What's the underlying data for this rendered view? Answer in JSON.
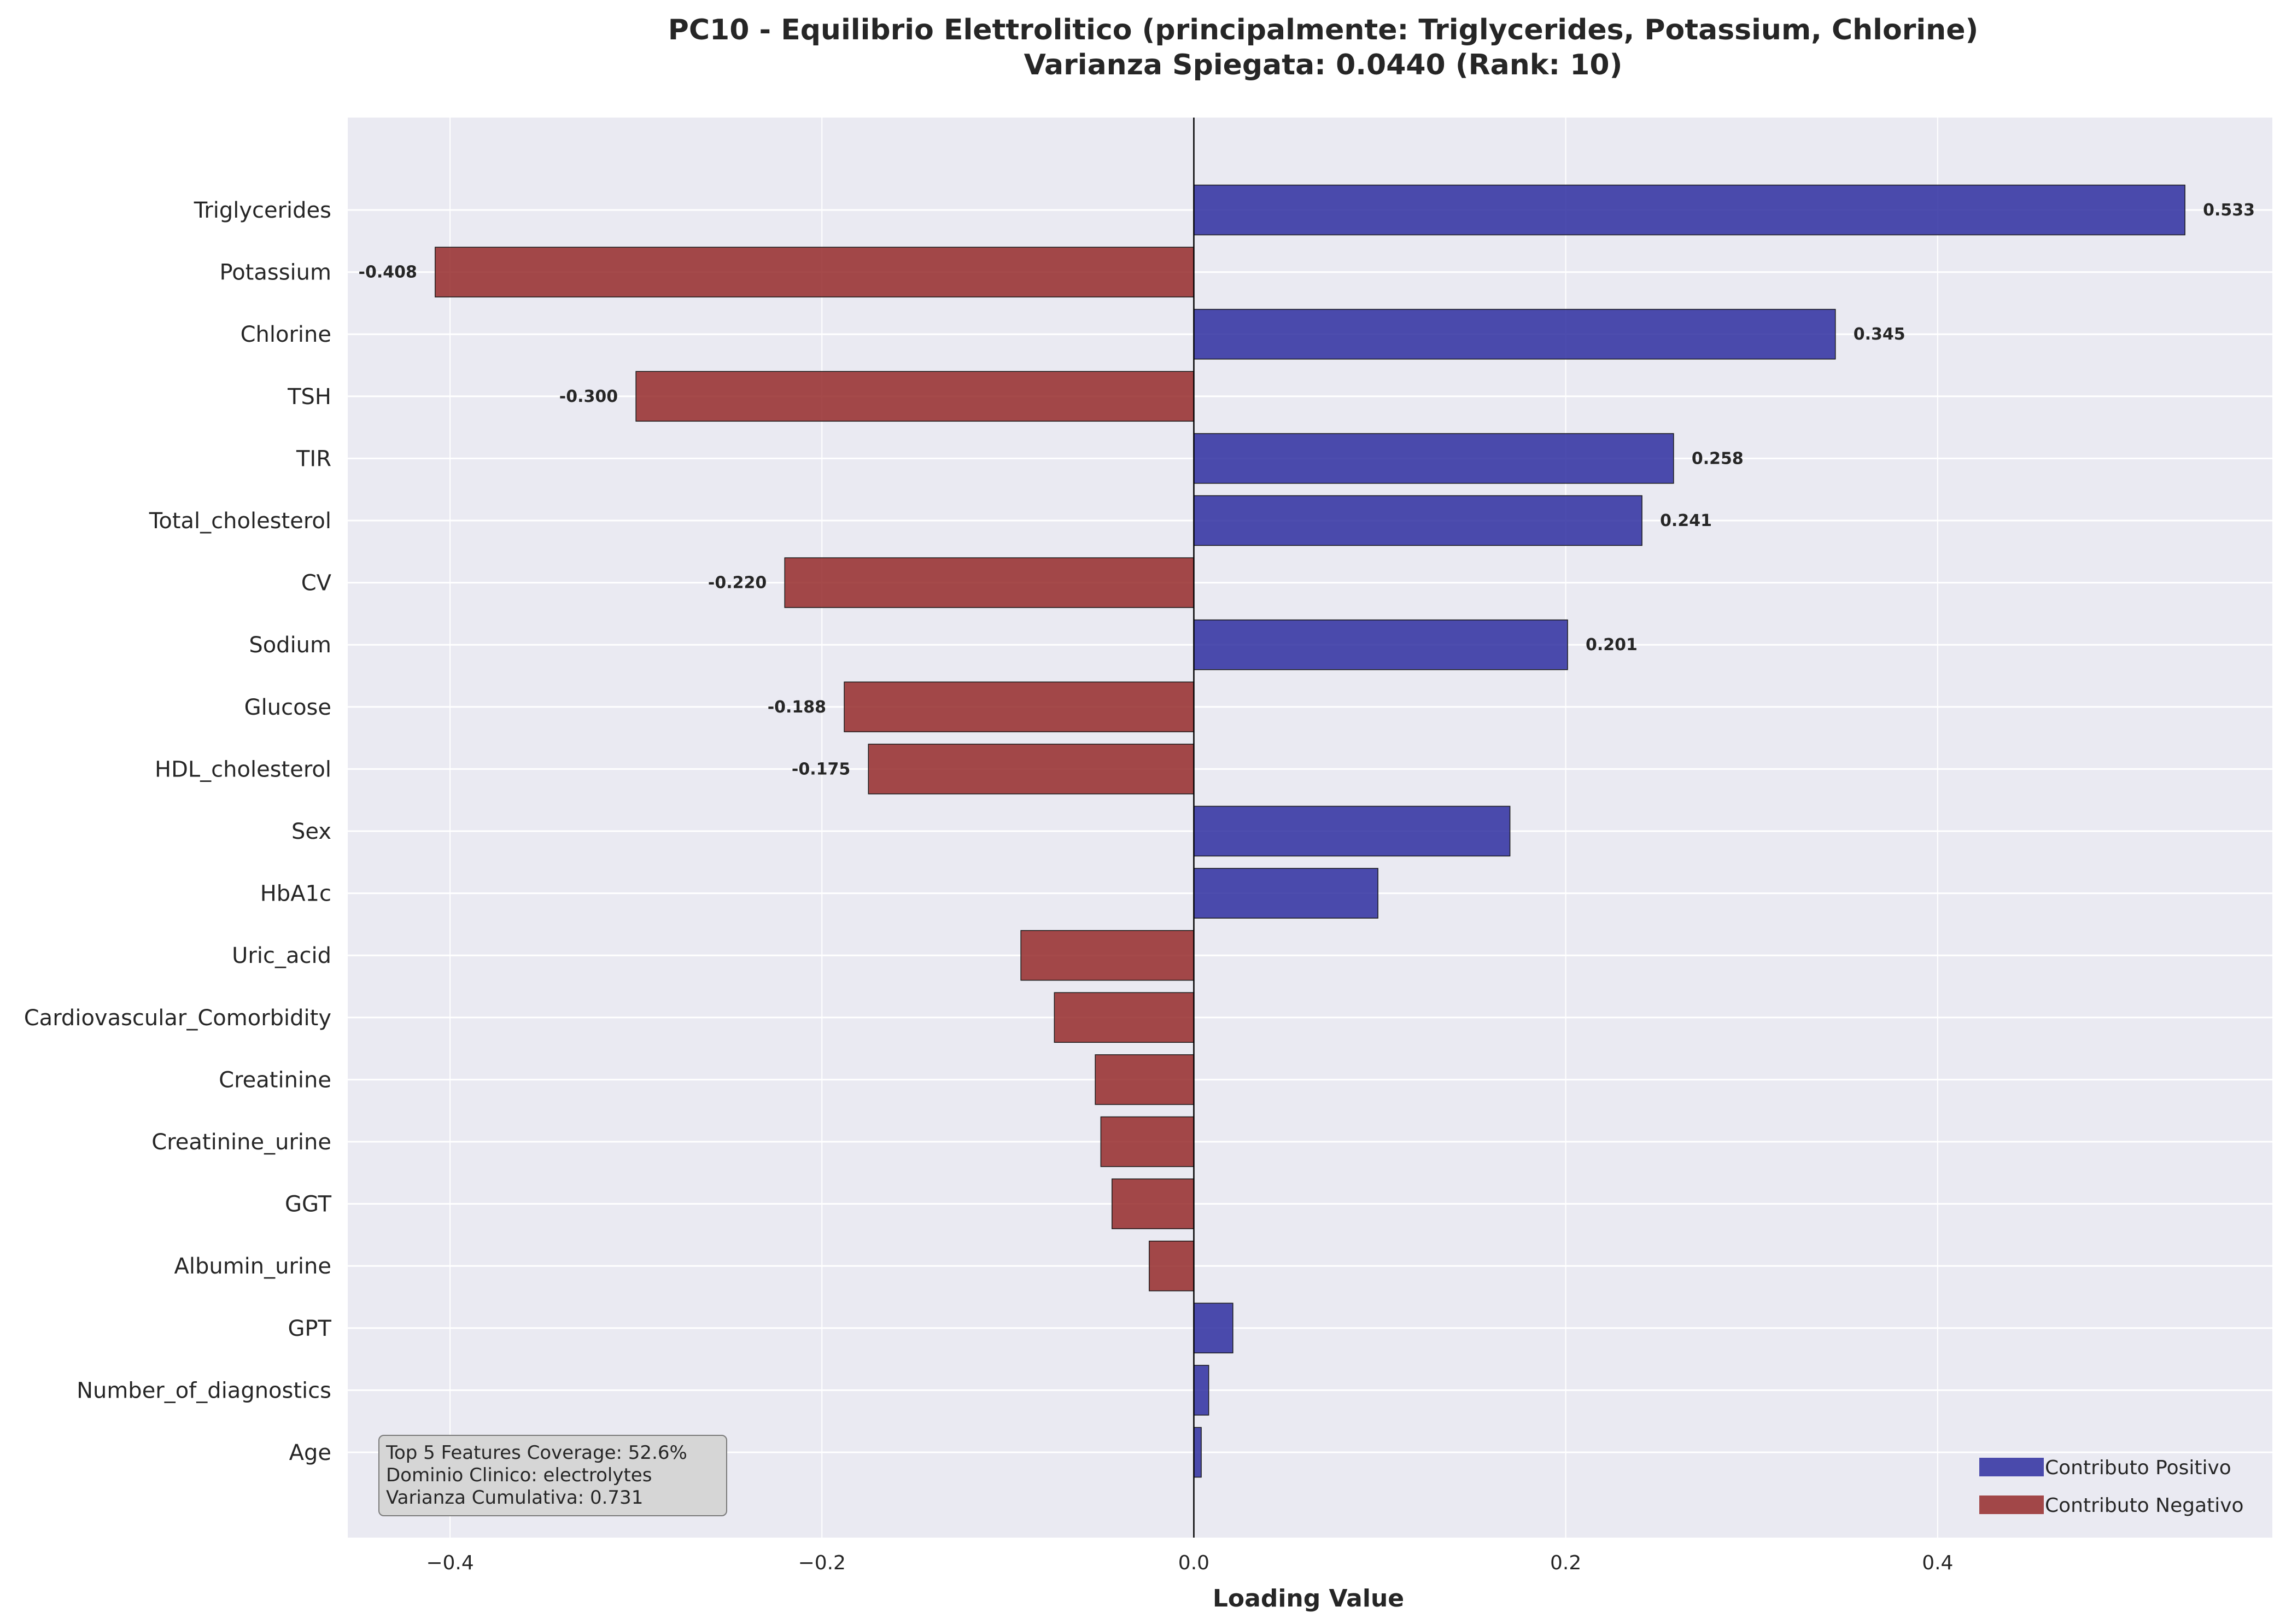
{
  "chart_data": {
    "type": "bar",
    "orientation": "horizontal",
    "title_lines": [
      "PC10 - Equilibrio Elettrolitico (principalmente: Triglycerides, Potassium, Chlorine)",
      "Varianza Spiegata: 0.0440 (Rank: 10)"
    ],
    "xlabel": "Loading Value",
    "ylabel": "",
    "xlim": [
      -0.455,
      0.58
    ],
    "xticks": [
      -0.4,
      -0.2,
      0.0,
      0.2,
      0.4
    ],
    "xtick_labels": [
      "−0.4",
      "−0.2",
      "0.0",
      "0.2",
      "0.4"
    ],
    "grid": true,
    "categories": [
      "Triglycerides",
      "Potassium",
      "Chlorine",
      "TSH",
      "TIR",
      "Total_cholesterol",
      "CV",
      "Sodium",
      "Glucose",
      "HDL_cholesterol",
      "Sex",
      "HbA1c",
      "Uric_acid",
      "Cardiovascular_Comorbidity",
      "Creatinine",
      "Creatinine_urine",
      "GGT",
      "Albumin_urine",
      "GPT",
      "Number_of_diagnostics",
      "Age"
    ],
    "values": [
      0.533,
      -0.408,
      0.345,
      -0.3,
      0.258,
      0.241,
      -0.22,
      0.201,
      -0.188,
      -0.175,
      0.17,
      0.099,
      -0.093,
      -0.075,
      -0.053,
      -0.05,
      -0.044,
      -0.024,
      0.021,
      0.008,
      0.004
    ],
    "data_labels": [
      "0.533",
      "-0.408",
      "0.345",
      "-0.300",
      "0.258",
      "0.241",
      "-0.220",
      "0.201",
      "-0.188",
      "-0.175",
      "",
      "",
      "",
      "",
      "",
      "",
      "",
      "",
      "",
      "",
      ""
    ],
    "legend": {
      "position": "bottom-right",
      "entries": [
        {
          "label": "Contributo Positivo",
          "color": "#2e2ea0"
        },
        {
          "label": "Contributo Negativo",
          "color": "#952a2a"
        }
      ]
    },
    "annotation": [
      "Top 5 Features Coverage: 52.6%",
      "Dominio Clinico: electrolytes",
      "Varianza Cumulativa: 0.731"
    ],
    "colors": {
      "positive": "#2e2ea0",
      "negative": "#952a2a",
      "background": "#eaeaf2",
      "grid": "#ffffff"
    }
  }
}
